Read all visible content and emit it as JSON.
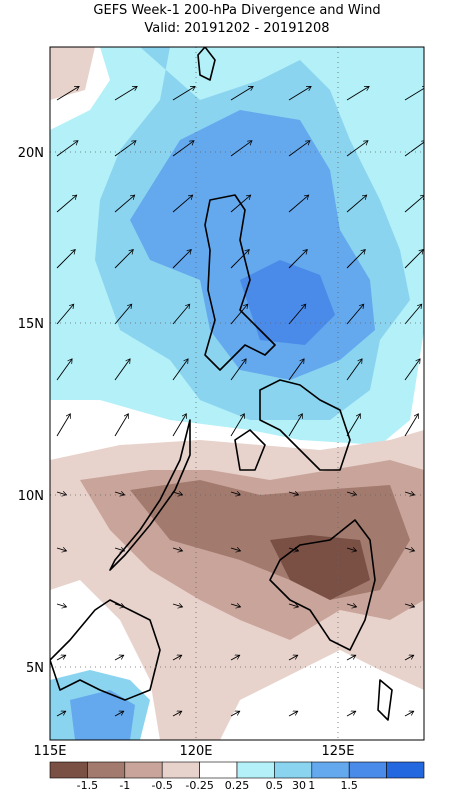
{
  "title": [
    "GEFS Week-1 200-hPa Divergence and Wind",
    "Valid: 20191202 - 20191208"
  ],
  "lat_labels": [
    "20N",
    "15N",
    "10N",
    "5N"
  ],
  "lon_labels": [
    "115E",
    "120E",
    "125E"
  ],
  "colorbar": {
    "labels": [
      "-1.5",
      "-1",
      "-0.5",
      "-0.25",
      "0.25",
      "0.5",
      "1",
      "1.5"
    ],
    "colors": [
      "#7a5045",
      "#a37a6e",
      "#c9a49a",
      "#e8d2cc",
      "#ffffff",
      "#b3f0f8",
      "#8ad4f0",
      "#64a8ee",
      "#4a8ae8",
      "#2468e0"
    ]
  },
  "vector_scale_label": "30"
}
